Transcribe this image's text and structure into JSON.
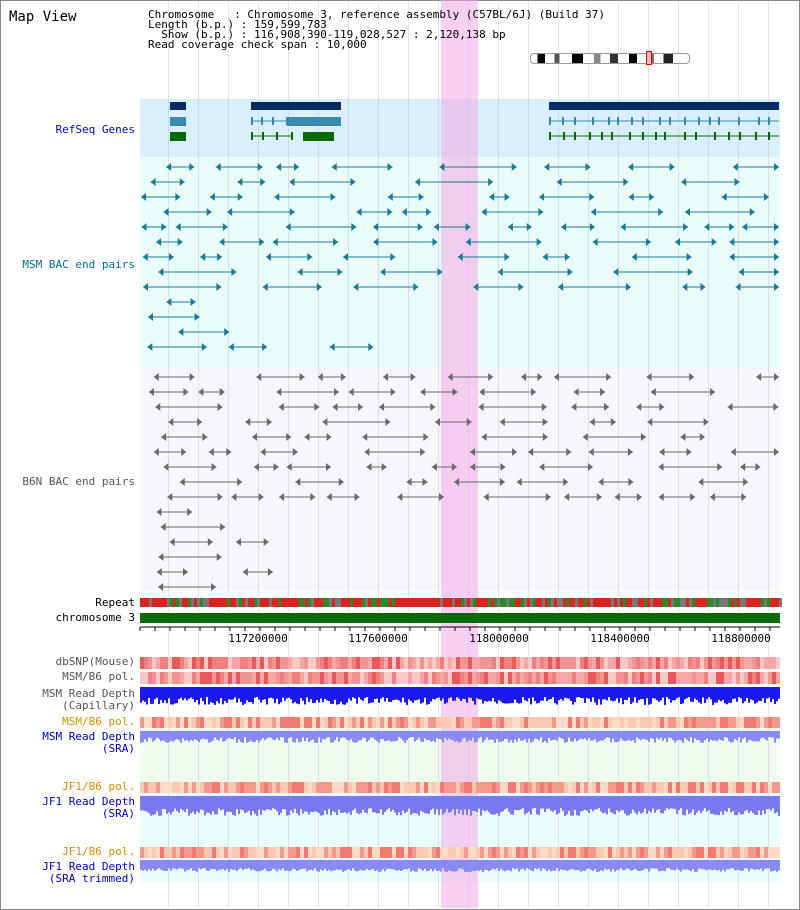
{
  "window": {
    "title": "Map View"
  },
  "info": {
    "chromosome_label": "Chromosome   ",
    "chromosome_value": "Chromosome 3, reference assembly (C57BL/6J) (Build 37)",
    "length_label": "Length (b.p.)",
    "length_value": "159,599,783",
    "show_label": "  Show (b.p.)",
    "show_value": "116,908,390-119,028,527 : 2,120,138 bp",
    "coverage_label": "Read coverage check span",
    "coverage_value": "10,000"
  },
  "tracks": {
    "refseq": {
      "label": "RefSeq Genes",
      "color": "#0000cc"
    },
    "msm_bac": {
      "label": "MSM BAC end pairs",
      "color": "#006f8f"
    },
    "b6n_bac": {
      "label": "B6N BAC end pairs",
      "color": "#555555"
    },
    "repeat": {
      "label": "Repeat"
    },
    "chromosome": {
      "label": "chromosome 3"
    },
    "dbsnp": {
      "label": "dbSNP(Mouse)"
    },
    "msm_b6_pol_1": {
      "label": "MSM/B6 pol."
    },
    "msm_read_depth_cap": {
      "label": "MSM Read Depth\n(Capillary)"
    },
    "msm_b6_pol_2": {
      "label": "MSM/B6 pol.",
      "color": "#e08a00"
    },
    "msm_read_depth_sra": {
      "label": "MSM Read Depth\n(SRA)",
      "color": "#0000cc"
    },
    "jf1_b6_pol_1": {
      "label": "JF1/B6 pol.",
      "color": "#e08a00"
    },
    "jf1_read_depth_sra": {
      "label": "JF1 Read Depth\n(SRA)",
      "color": "#0000cc"
    },
    "jf1_b6_pol_2": {
      "label": "JF1/B6 pol.",
      "color": "#e08a00"
    },
    "jf1_read_depth_trimmed": {
      "label": "JF1 Read Depth\n(SRA trimmed)",
      "color": "#0000cc"
    }
  },
  "axis": {
    "ticks": [
      "117200000",
      "117600000",
      "118000000",
      "118400000",
      "118800000"
    ]
  }
}
